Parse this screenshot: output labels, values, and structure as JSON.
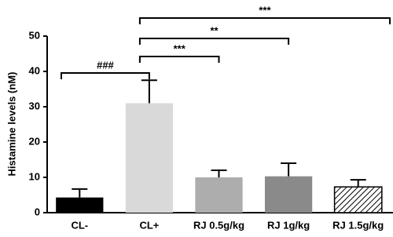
{
  "chart_data": {
    "type": "bar",
    "ylabel": "Histamine levels (nM)",
    "categories": [
      "CL-",
      "CL+",
      "RJ 0.5g/kg",
      "RJ 1g/kg",
      "RJ 1.5g/kg"
    ],
    "values": [
      4.3,
      31,
      10,
      10.3,
      7.3
    ],
    "errors": [
      2.4,
      6.5,
      2,
      3.7,
      2
    ],
    "colors": [
      "#000000",
      "#d9d9d9",
      "#adadad",
      "#8a8a8a",
      "#ffffff"
    ],
    "patterns": [
      null,
      null,
      null,
      null,
      "diagonal"
    ],
    "ylim": [
      0,
      50
    ],
    "yticks": [
      0,
      10,
      20,
      30,
      40,
      50
    ],
    "annotations": [
      "###",
      "***",
      "**",
      "***"
    ]
  }
}
